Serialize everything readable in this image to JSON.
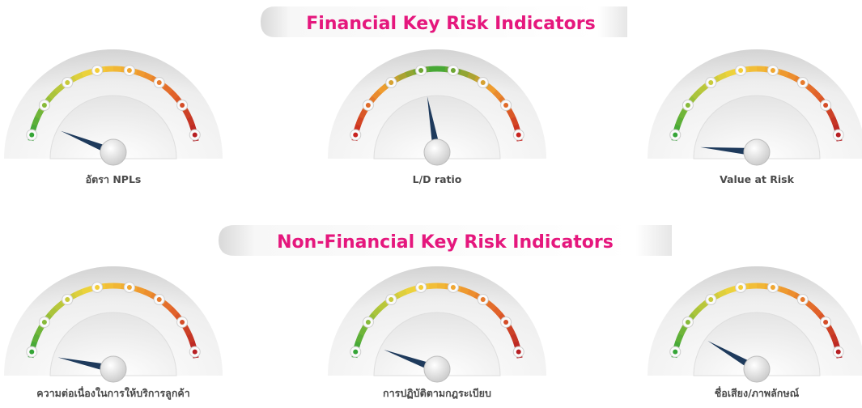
{
  "sections": [
    {
      "title": "Financial Key Risk Indicators",
      "gauges": [
        {
          "label": "อัตรา NPLs"
        },
        {
          "label": "L/D ratio"
        },
        {
          "label": "Value at Risk"
        }
      ]
    },
    {
      "title": "Non-Financial Key Risk Indicators",
      "gauges": [
        {
          "label": "ความต่อเนื่องในการให้บริการลูกค้า"
        },
        {
          "label": "การปฏิบัติตามกฎระเบียบ"
        },
        {
          "label": "ชื่อเสียง/ภาพลักษณ์"
        }
      ]
    }
  ]
}
